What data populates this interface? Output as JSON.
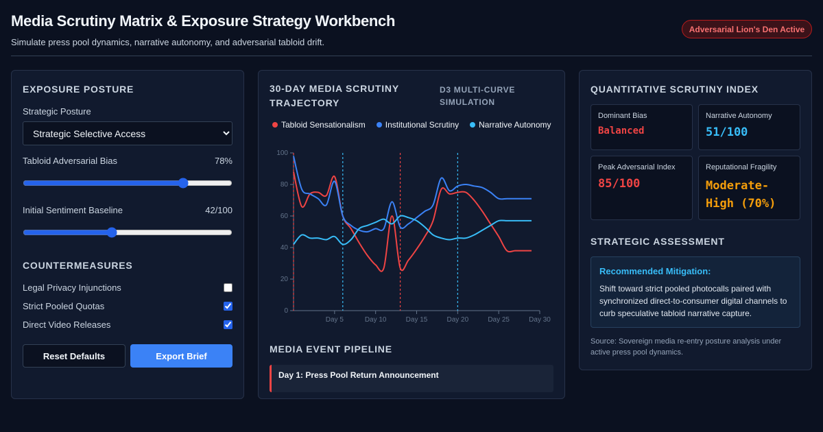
{
  "header": {
    "title": "Media Scrutiny Matrix & Exposure Strategy Workbench",
    "subtitle": "Simulate press pool dynamics, narrative autonomy, and adversarial tabloid drift.",
    "badge": "Adversarial Lion's Den Active"
  },
  "left": {
    "exposure_title": "EXPOSURE POSTURE",
    "posture_label": "Strategic Posture",
    "posture_value": "Strategic Selective Access",
    "bias_label": "Tabloid Adversarial Bias",
    "bias_value": "78%",
    "bias_level": 78,
    "sentiment_label": "Initial Sentiment Baseline",
    "sentiment_value": "42/100",
    "sentiment_level": 42,
    "counter_title": "COUNTERMEASURES",
    "countermeasures": [
      {
        "label": "Legal Privacy Injunctions",
        "checked": false
      },
      {
        "label": "Strict Pooled Quotas",
        "checked": true
      },
      {
        "label": "Direct Video Releases",
        "checked": true
      }
    ],
    "reset_label": "Reset Defaults",
    "export_label": "Export Brief"
  },
  "middle": {
    "chart_title": "30-DAY MEDIA SCRUTINY TRAJECTORY",
    "chart_tag": "D3 MULTI-CURVE SIMULATION",
    "pipeline_title": "MEDIA EVENT PIPELINE",
    "pipeline_first": "Day 1: Press Pool Return Announcement"
  },
  "chart_data": {
    "type": "line",
    "x": [
      0,
      1,
      2,
      3,
      4,
      5,
      6,
      7,
      8,
      9,
      10,
      11,
      12,
      13,
      14,
      15,
      16,
      17,
      18,
      19,
      20,
      21,
      22,
      23,
      24,
      25,
      26,
      27,
      28,
      29,
      30
    ],
    "ylim": [
      0,
      100
    ],
    "xlim": [
      0,
      30
    ],
    "yticks": [
      0,
      20,
      40,
      60,
      80,
      100
    ],
    "xtick_labels": [
      "Day 5",
      "Day 10",
      "Day 15",
      "Day 20",
      "Day 25",
      "Day 30"
    ],
    "xticks": [
      5,
      10,
      15,
      20,
      25,
      30
    ],
    "events": [
      {
        "day": 0,
        "color": "#ef4444"
      },
      {
        "day": 6,
        "color": "#38bdf8"
      },
      {
        "day": 13,
        "color": "#ef4444"
      },
      {
        "day": 20,
        "color": "#38bdf8"
      }
    ],
    "series": [
      {
        "name": "Tabloid Sensationalism",
        "color": "#ef4444",
        "values": [
          88,
          66,
          74,
          75,
          73,
          85,
          60,
          52,
          43,
          35,
          29,
          27,
          60,
          27,
          32,
          39,
          47,
          57,
          77,
          74,
          75,
          75,
          70,
          63,
          55,
          47,
          38,
          38,
          38,
          38,
          38
        ]
      },
      {
        "name": "Institutional Scrutiny",
        "color": "#3b82f6",
        "values": [
          98,
          77,
          74,
          71,
          67,
          82,
          60,
          54,
          51,
          50,
          52,
          52,
          69,
          53,
          55,
          59,
          63,
          67,
          84,
          76,
          79,
          80,
          79,
          78,
          75,
          71,
          71,
          71,
          71,
          71,
          71
        ]
      },
      {
        "name": "Narrative Autonomy",
        "color": "#38bdf8",
        "values": [
          42,
          48,
          46,
          46,
          45,
          47,
          42,
          45,
          52,
          54,
          56,
          58,
          55,
          60,
          59,
          57,
          53,
          48,
          46,
          45,
          46,
          46,
          48,
          51,
          54,
          57,
          57,
          57,
          57,
          57,
          57
        ]
      }
    ]
  },
  "right": {
    "index_title": "QUANTITATIVE SCRUTINY INDEX",
    "metrics": [
      {
        "label": "Dominant Bias",
        "value": "Balanced",
        "color": "#ef4444"
      },
      {
        "label": "Narrative Autonomy",
        "value": "51/100",
        "color": "#38bdf8"
      },
      {
        "label": "Peak Adversarial Index",
        "value": "85/100",
        "color": "#ef4444"
      },
      {
        "label": "Reputational Fragility",
        "value": "Moderate-High (70%)",
        "color": "#f59e0b"
      }
    ],
    "assessment_title": "STRATEGIC ASSESSMENT",
    "mitigation_title": "Recommended Mitigation:",
    "mitigation_text": "Shift toward strict pooled photocalls paired with synchronized direct-to-consumer digital channels to curb speculative tabloid narrative capture.",
    "source": "Source: Sovereign media re-entry posture analysis under active press pool dynamics."
  }
}
